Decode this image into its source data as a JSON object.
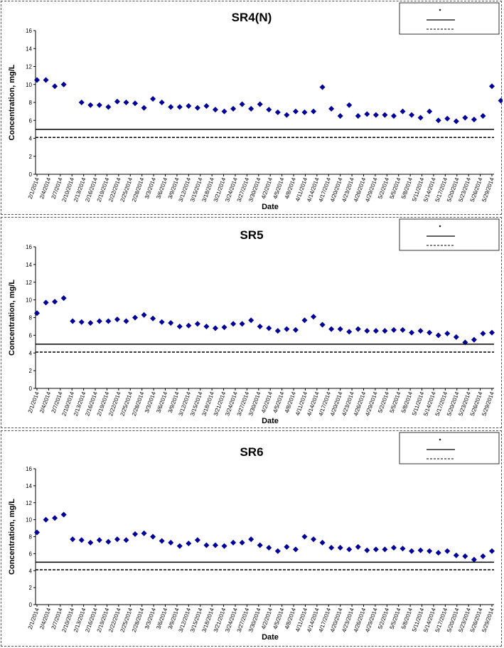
{
  "chart_data": [
    {
      "type": "scatter",
      "title": "SR4(N)",
      "xlabel": "Date",
      "ylabel": "Concentration, mg/L",
      "ylim": [
        0,
        16
      ],
      "yticks": [
        "0",
        "2",
        "4",
        "6",
        "8",
        "10",
        "12",
        "14",
        "16"
      ],
      "categories": [
        "2/1/2014",
        "2/4/2014",
        "2/7/2014",
        "2/10/2014",
        "2/13/2014",
        "2/16/2014",
        "2/19/2014",
        "2/22/2014",
        "2/25/2014",
        "2/28/2014",
        "3/3/2014",
        "3/6/2014",
        "3/9/2014",
        "3/12/2014",
        "3/15/2014",
        "3/18/2014",
        "3/21/2014",
        "3/24/2014",
        "3/27/2014",
        "3/30/2014",
        "4/2/2014",
        "4/5/2014",
        "4/8/2014",
        "4/11/2014",
        "4/14/2014",
        "4/17/2014",
        "4/20/2014",
        "4/23/2014",
        "4/26/2014",
        "4/29/2014",
        "5/2/2014",
        "5/5/2014",
        "5/8/2014",
        "5/11/2014",
        "5/14/2014",
        "5/17/2014",
        "5/20/2014",
        "5/23/2014",
        "5/26/2014",
        "5/29/2014"
      ],
      "grid": false,
      "legend_placement": "top-right",
      "series": [
        {
          "type": "points",
          "marker": "diamond",
          "color": "#000099",
          "points": [
            [
              0,
              10.5
            ],
            [
              1,
              10.5
            ],
            [
              2,
              9.8
            ],
            [
              3,
              10
            ],
            [
              5,
              8
            ],
            [
              6,
              7.7
            ],
            [
              7,
              7.7
            ],
            [
              8,
              7.5
            ],
            [
              9,
              8.1
            ],
            [
              10,
              8
            ],
            [
              11,
              7.9
            ],
            [
              12,
              7.4
            ],
            [
              13,
              8.4
            ],
            [
              14,
              8
            ],
            [
              15,
              7.5
            ],
            [
              16,
              7.5
            ],
            [
              17,
              7.6
            ],
            [
              18,
              7.4
            ],
            [
              19,
              7.6
            ],
            [
              20,
              7.2
            ],
            [
              21,
              7.0
            ],
            [
              22,
              7.3
            ],
            [
              23,
              7.8
            ],
            [
              24,
              7.3
            ],
            [
              25,
              7.8
            ],
            [
              26,
              7.2
            ],
            [
              27,
              6.9
            ],
            [
              28,
              6.6
            ],
            [
              29,
              7
            ],
            [
              30,
              6.9
            ],
            [
              31,
              7
            ],
            [
              32,
              9.7
            ],
            [
              33,
              7.3
            ],
            [
              34,
              6.5
            ],
            [
              35,
              7.7
            ],
            [
              36,
              6.5
            ],
            [
              37,
              6.7
            ],
            [
              38,
              6.6
            ],
            [
              39,
              6.6
            ],
            [
              40,
              6.5
            ],
            [
              41,
              7
            ],
            [
              42,
              6.6
            ],
            [
              43,
              6.3
            ],
            [
              44,
              7
            ],
            [
              45,
              6
            ],
            [
              46,
              6.2
            ],
            [
              47,
              5.9
            ],
            [
              48,
              6.3
            ],
            [
              49,
              6.1
            ],
            [
              50,
              6.5
            ],
            [
              51,
              9.8
            ],
            [
              52,
              8.2
            ]
          ]
        },
        {
          "type": "hline",
          "value": 5,
          "style": "solid"
        },
        {
          "type": "hline",
          "value": 4.1,
          "style": "dashed"
        }
      ]
    },
    {
      "type": "scatter",
      "title": "SR5",
      "xlabel": "Date",
      "ylabel": "Concentration, mg/L",
      "ylim": [
        0,
        16
      ],
      "yticks": [
        "0",
        "2",
        "4",
        "6",
        "8",
        "10",
        "12",
        "14",
        "16"
      ],
      "categories": [
        "2/1/2014",
        "2/4/2014",
        "2/7/2014",
        "2/10/2014",
        "2/13/2014",
        "2/16/2014",
        "2/19/2014",
        "2/22/2014",
        "2/25/2014",
        "2/28/2014",
        "3/3/2014",
        "3/6/2014",
        "3/9/2014",
        "3/12/2014",
        "3/15/2014",
        "3/18/2014",
        "3/21/2014",
        "3/24/2014",
        "3/27/2014",
        "3/30/2014",
        "4/2/2014",
        "4/5/2014",
        "4/8/2014",
        "4/11/2014",
        "4/14/2014",
        "4/17/2014",
        "4/20/2014",
        "4/23/2014",
        "4/26/2014",
        "4/29/2014",
        "5/2/2014",
        "5/5/2014",
        "5/8/2014",
        "5/11/2014",
        "5/14/2014",
        "5/17/2014",
        "5/20/2014",
        "5/23/2014",
        "5/26/2014",
        "5/29/2014"
      ],
      "grid": false,
      "legend_placement": "top-right",
      "series": [
        {
          "type": "points",
          "marker": "diamond",
          "color": "#000099",
          "points": [
            [
              0,
              8.5
            ],
            [
              1,
              9.7
            ],
            [
              2,
              9.8
            ],
            [
              3,
              10.2
            ],
            [
              4,
              7.6
            ],
            [
              5,
              7.5
            ],
            [
              6,
              7.4
            ],
            [
              7,
              7.6
            ],
            [
              8,
              7.6
            ],
            [
              9,
              7.8
            ],
            [
              10,
              7.6
            ],
            [
              11,
              8
            ],
            [
              12,
              8.3
            ],
            [
              13,
              7.9
            ],
            [
              14,
              7.5
            ],
            [
              15,
              7.4
            ],
            [
              16,
              7
            ],
            [
              17,
              7.1
            ],
            [
              18,
              7.3
            ],
            [
              19,
              7
            ],
            [
              20,
              6.8
            ],
            [
              21,
              6.9
            ],
            [
              22,
              7.3
            ],
            [
              23,
              7.3
            ],
            [
              24,
              7.7
            ],
            [
              25,
              7
            ],
            [
              26,
              6.8
            ],
            [
              27,
              6.5
            ],
            [
              28,
              6.7
            ],
            [
              29,
              6.6
            ],
            [
              30,
              7.7
            ],
            [
              31,
              8.1
            ],
            [
              32,
              7.2
            ],
            [
              33,
              6.7
            ],
            [
              34,
              6.7
            ],
            [
              35,
              6.4
            ],
            [
              36,
              6.7
            ],
            [
              37,
              6.5
            ],
            [
              38,
              6.5
            ],
            [
              39,
              6.5
            ],
            [
              40,
              6.6
            ],
            [
              41,
              6.6
            ],
            [
              42,
              6.3
            ],
            [
              43,
              6.5
            ],
            [
              44,
              6.3
            ],
            [
              45,
              6
            ],
            [
              46,
              6.2
            ],
            [
              47,
              5.8
            ],
            [
              48,
              5.2
            ],
            [
              49,
              5.5
            ],
            [
              50,
              6.2
            ],
            [
              51,
              6.3
            ]
          ]
        },
        {
          "type": "hline",
          "value": 5,
          "style": "solid"
        },
        {
          "type": "hline",
          "value": 4.1,
          "style": "dashed"
        }
      ]
    },
    {
      "type": "scatter",
      "title": "SR6",
      "xlabel": "Date",
      "ylabel": "Concentration, mg/L",
      "ylim": [
        0,
        16
      ],
      "yticks": [
        "0",
        "2",
        "4",
        "6",
        "8",
        "10",
        "12",
        "14",
        "16"
      ],
      "categories": [
        "2/1/2014",
        "2/4/2014",
        "2/7/2014",
        "2/10/2014",
        "2/13/2014",
        "2/16/2014",
        "2/19/2014",
        "2/22/2014",
        "2/25/2014",
        "2/28/2014",
        "3/3/2014",
        "3/6/2014",
        "3/9/2014",
        "3/12/2014",
        "3/15/2014",
        "3/18/2014",
        "3/21/2014",
        "3/24/2014",
        "3/27/2014",
        "3/30/2014",
        "4/2/2014",
        "4/5/2014",
        "4/8/2014",
        "4/11/2014",
        "4/14/2014",
        "4/17/2014",
        "4/20/2014",
        "4/23/2014",
        "4/26/2014",
        "4/29/2014",
        "5/2/2014",
        "5/5/2014",
        "5/8/2014",
        "5/11/2014",
        "5/14/2014",
        "5/17/2014",
        "5/20/2014",
        "5/23/2014",
        "5/26/2014",
        "5/29/2014"
      ],
      "grid": false,
      "legend_placement": "top-right",
      "series": [
        {
          "type": "points",
          "marker": "diamond",
          "color": "#000099",
          "points": [
            [
              0,
              8.5
            ],
            [
              1,
              10
            ],
            [
              2,
              10.2
            ],
            [
              3,
              10.6
            ],
            [
              4,
              7.7
            ],
            [
              5,
              7.6
            ],
            [
              6,
              7.3
            ],
            [
              7,
              7.6
            ],
            [
              8,
              7.4
            ],
            [
              9,
              7.7
            ],
            [
              10,
              7.6
            ],
            [
              11,
              8.3
            ],
            [
              12,
              8.4
            ],
            [
              13,
              8
            ],
            [
              14,
              7.5
            ],
            [
              15,
              7.3
            ],
            [
              16,
              6.9
            ],
            [
              17,
              7.2
            ],
            [
              18,
              7.6
            ],
            [
              19,
              7
            ],
            [
              20,
              7
            ],
            [
              21,
              6.9
            ],
            [
              22,
              7.3
            ],
            [
              23,
              7.3
            ],
            [
              24,
              7.7
            ],
            [
              25,
              7
            ],
            [
              26,
              6.7
            ],
            [
              27,
              6.3
            ],
            [
              28,
              6.8
            ],
            [
              29,
              6.5
            ],
            [
              30,
              8
            ],
            [
              31,
              7.7
            ],
            [
              32,
              7.3
            ],
            [
              33,
              6.7
            ],
            [
              34,
              6.7
            ],
            [
              35,
              6.5
            ],
            [
              36,
              6.8
            ],
            [
              37,
              6.4
            ],
            [
              38,
              6.5
            ],
            [
              39,
              6.5
            ],
            [
              40,
              6.7
            ],
            [
              41,
              6.6
            ],
            [
              42,
              6.3
            ],
            [
              43,
              6.4
            ],
            [
              44,
              6.3
            ],
            [
              45,
              6.1
            ],
            [
              46,
              6.3
            ],
            [
              47,
              5.8
            ],
            [
              48,
              5.7
            ],
            [
              49,
              5.3
            ],
            [
              50,
              5.7
            ],
            [
              51,
              6.3
            ]
          ]
        },
        {
          "type": "hline",
          "value": 5,
          "style": "solid"
        },
        {
          "type": "hline",
          "value": 4.1,
          "style": "dashed"
        }
      ]
    }
  ]
}
